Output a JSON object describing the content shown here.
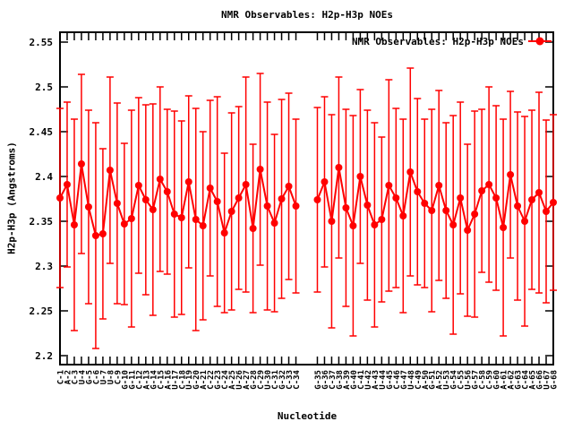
{
  "title": "NMR Observables: H2p-H3p NOEs",
  "colors": {
    "series": "#ff0000",
    "axis": "#000000",
    "text": "#000000",
    "background": "#ffffff"
  },
  "chart_data": {
    "type": "line",
    "title": "NMR Observables: H2p-H3p NOEs",
    "xlabel": "Nucleotide",
    "ylabel": "H2p-H3p (Angstroms)",
    "legend_label": "NMR Observables: H2p-H3p NOEs",
    "legend_position": "top-right-inside",
    "grid": false,
    "error_bars": true,
    "marker": "filled-circle",
    "series_color": "#ff0000",
    "ylim": [
      2.189,
      2.561
    ],
    "y_ticks": [
      2.2,
      2.25,
      2.3,
      2.35,
      2.4,
      2.45,
      2.5,
      2.55
    ],
    "y_tick_labels": [
      "2.2",
      "2.25",
      "2.3",
      "2.35",
      "2.4",
      "2.45",
      "2.5",
      "2.55"
    ],
    "x_slot_count": 70,
    "series": [
      {
        "name": "strand-1",
        "slot_start": 1,
        "labels": [
          "C-1",
          "A-2",
          "C-3",
          "U-4",
          "G-5",
          "C-6",
          "U-7",
          "U-8",
          "C-9",
          "G-10",
          "G-11",
          "C-12",
          "A-13",
          "G-14",
          "C-15",
          "A-16",
          "U-17",
          "C-18",
          "U-19",
          "G-20",
          "A-21",
          "C-22",
          "G-23",
          "C-24",
          "A-25",
          "U-26",
          "A-27",
          "G-28",
          "C-29",
          "U-30",
          "C-31",
          "G-32",
          "C-33",
          "C-34"
        ],
        "values": [
          2.376,
          2.391,
          2.346,
          2.414,
          2.366,
          2.334,
          2.336,
          2.407,
          2.37,
          2.347,
          2.353,
          2.39,
          2.374,
          2.363,
          2.397,
          2.383,
          2.358,
          2.354,
          2.394,
          2.352,
          2.345,
          2.387,
          2.372,
          2.337,
          2.361,
          2.376,
          2.391,
          2.342,
          2.408,
          2.367,
          2.348,
          2.375,
          2.389,
          2.367
        ],
        "err": [
          0.1,
          0.092,
          0.118,
          0.1,
          0.108,
          0.126,
          0.095,
          0.104,
          0.112,
          0.09,
          0.121,
          0.098,
          0.106,
          0.118,
          0.103,
          0.092,
          0.115,
          0.108,
          0.096,
          0.124,
          0.105,
          0.098,
          0.117,
          0.089,
          0.11,
          0.102,
          0.12,
          0.094,
          0.107,
          0.116,
          0.099,
          0.111,
          0.104,
          0.097
        ]
      },
      {
        "name": "strand-2",
        "slot_start": 37,
        "labels": [
          "G-35",
          "G-36",
          "C-37",
          "G-38",
          "A-39",
          "G-40",
          "C-41",
          "U-42",
          "A-43",
          "U-44",
          "G-45",
          "C-46",
          "G-47",
          "U-48",
          "C-49",
          "A-50",
          "G-51",
          "A-52",
          "U-53",
          "G-54",
          "C-55",
          "U-56",
          "G-57",
          "C-58",
          "C-59",
          "G-60",
          "A-61",
          "A-62",
          "G-63",
          "C-64",
          "A-65",
          "G-66",
          "U-67",
          "G-68"
        ],
        "values": [
          2.374,
          2.394,
          2.35,
          2.41,
          2.365,
          2.345,
          2.4,
          2.368,
          2.346,
          2.352,
          2.39,
          2.376,
          2.356,
          2.405,
          2.383,
          2.37,
          2.362,
          2.39,
          2.362,
          2.346,
          2.376,
          2.34,
          2.358,
          2.384,
          2.391,
          2.376,
          2.343,
          2.402,
          2.367,
          2.35,
          2.374,
          2.382,
          2.361,
          2.371
        ],
        "err": [
          0.103,
          0.095,
          0.119,
          0.101,
          0.11,
          0.123,
          0.097,
          0.106,
          0.114,
          0.092,
          0.118,
          0.1,
          0.108,
          0.116,
          0.104,
          0.094,
          0.113,
          0.106,
          0.098,
          0.122,
          0.107,
          0.096,
          0.115,
          0.091,
          0.109,
          0.103,
          0.121,
          0.093,
          0.105,
          0.117,
          0.1,
          0.112,
          0.102,
          0.098
        ]
      }
    ]
  }
}
